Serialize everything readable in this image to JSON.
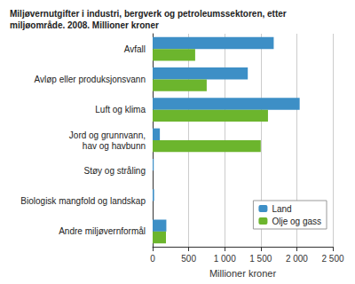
{
  "chart_data": {
    "type": "bar",
    "orientation": "horizontal",
    "title": "Miljøvernutgifter i industri, bergverk og petroleumssektoren, etter\nmiljøområde. 2008. Millioner kroner",
    "xlabel": "Millioner kroner",
    "categories": [
      "Avfall",
      "Avløp eller produksjonsvann",
      "Luft og klima",
      "Jord og grunnvann,\nhav og havbunn",
      "Støy og stråling",
      "Biologisk mangfold og landskap",
      "Andre miljøvernformål"
    ],
    "series": [
      {
        "name": "Land",
        "color": "#3d8fc6",
        "values": [
          1680,
          1320,
          2040,
          100,
          15,
          20,
          190
        ]
      },
      {
        "name": "Olje og gass",
        "color": "#6cb52d",
        "values": [
          590,
          750,
          1600,
          1500,
          0,
          0,
          185
        ]
      }
    ],
    "xlim": [
      0,
      2500
    ],
    "xticks": [
      0,
      500,
      {
        "value": 1000,
        "label": "1 000"
      },
      {
        "value": 1500,
        "label": "1 500"
      },
      {
        "value": 2000,
        "label": "2 000"
      },
      {
        "value": 2500,
        "label": "2 500"
      }
    ],
    "grid": true,
    "legend": "lower right"
  }
}
